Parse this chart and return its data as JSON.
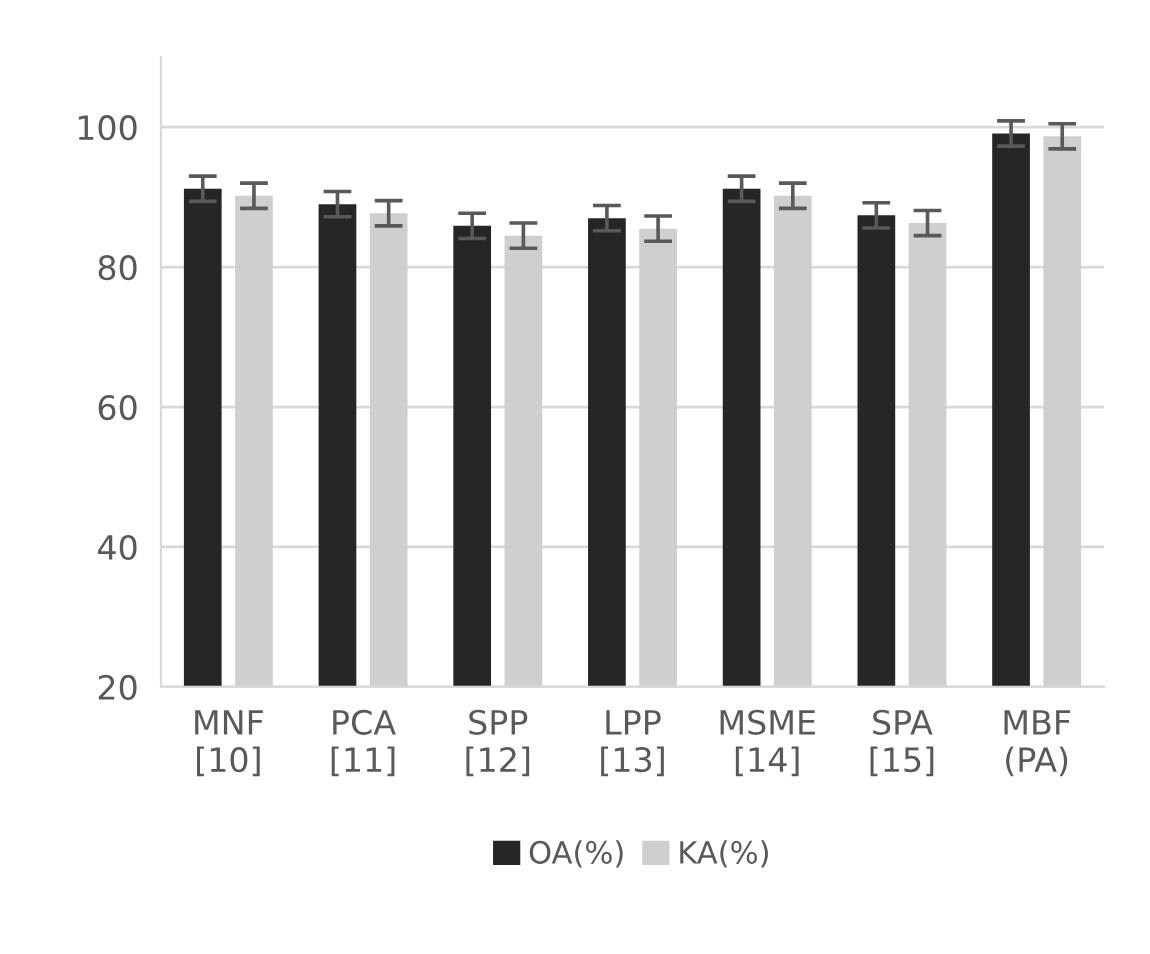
{
  "chart_data": {
    "type": "bar",
    "categories": [
      "MNF\n[10]",
      "PCA\n[11]",
      "SPP\n[12]",
      "LPP\n[13]",
      "MSME\n[14]",
      "SPA\n[15]",
      "MBF\n(PA)"
    ],
    "series": [
      {
        "name": "OA(%)",
        "color": "#262626",
        "values": [
          91.2,
          89.0,
          85.9,
          87.0,
          91.2,
          87.4,
          99.1
        ],
        "errors": [
          1.8,
          1.8,
          1.8,
          1.8,
          1.8,
          1.8,
          1.8
        ]
      },
      {
        "name": "KA(%)",
        "color": "#d0cece",
        "values": [
          90.2,
          87.7,
          84.5,
          85.5,
          90.2,
          86.3,
          98.7
        ],
        "errors": [
          1.8,
          1.8,
          1.8,
          1.8,
          1.8,
          1.8,
          1.8
        ]
      }
    ],
    "ylim": [
      20,
      110
    ],
    "yticks": [
      20,
      40,
      60,
      80,
      100
    ],
    "grid": "y",
    "legend": "bottom"
  }
}
